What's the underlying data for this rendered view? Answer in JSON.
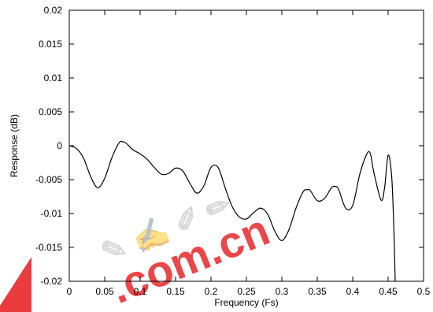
{
  "chart_data": {
    "type": "line",
    "title": "",
    "xlabel": "Frequency (Fs)",
    "ylabel": "Response (dB)",
    "xlim": [
      0,
      0.5
    ],
    "ylim": [
      -0.02,
      0.02
    ],
    "grid": false,
    "x_ticks": [
      "0",
      "0.05",
      "0.1",
      "0.15",
      "0.2",
      "0.25",
      "0.3",
      "0.35",
      "0.4",
      "0.45",
      "0.5"
    ],
    "y_ticks": [
      "0.02",
      "0.015",
      "0.01",
      "0.005",
      "0",
      "-0.005",
      "-0.01",
      "-0.015",
      "-0.02"
    ],
    "series": [
      {
        "color": "#000000",
        "x": [
          0,
          0.01,
          0.02,
          0.03,
          0.04,
          0.05,
          0.06,
          0.07,
          0.075,
          0.08,
          0.09,
          0.1,
          0.11,
          0.12,
          0.13,
          0.14,
          0.15,
          0.16,
          0.17,
          0.18,
          0.19,
          0.2,
          0.21,
          0.22,
          0.23,
          0.24,
          0.25,
          0.26,
          0.27,
          0.28,
          0.29,
          0.3,
          0.31,
          0.32,
          0.33,
          0.335,
          0.34,
          0.35,
          0.36,
          0.37,
          0.375,
          0.38,
          0.39,
          0.4,
          0.41,
          0.42,
          0.425,
          0.43,
          0.44,
          0.445,
          0.45,
          0.455,
          0.458,
          0.46
        ],
        "values": [
          0,
          -0.0004,
          -0.0018,
          -0.0045,
          -0.0062,
          -0.0048,
          -0.0018,
          0.0004,
          0.0006,
          0.0004,
          -0.0006,
          -0.0012,
          -0.002,
          -0.0032,
          -0.0042,
          -0.0041,
          -0.0033,
          -0.0037,
          -0.0055,
          -0.007,
          -0.0059,
          -0.0032,
          -0.0032,
          -0.0062,
          -0.009,
          -0.0105,
          -0.0108,
          -0.0099,
          -0.0092,
          -0.0101,
          -0.0126,
          -0.014,
          -0.0124,
          -0.0092,
          -0.0068,
          -0.0065,
          -0.0066,
          -0.0081,
          -0.0078,
          -0.0062,
          -0.006,
          -0.0064,
          -0.0092,
          -0.0088,
          -0.0042,
          -0.0012,
          -0.0012,
          -0.004,
          -0.008,
          -0.0062,
          -0.0014,
          -0.0045,
          -0.012,
          -0.02
        ]
      }
    ]
  },
  "watermark": {
    "domain_text": ".com.cn",
    "red_color": "#e8262a"
  }
}
